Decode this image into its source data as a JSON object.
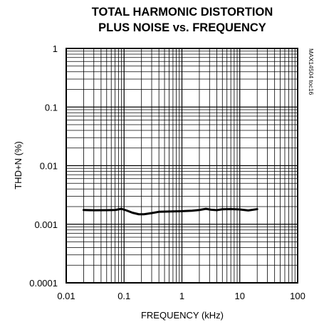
{
  "chart_data": {
    "type": "line",
    "title_lines": [
      "TOTAL HARMONIC DISTORTION",
      "PLUS NOISE vs. FREQUENCY"
    ],
    "xlabel": "FREQUENCY (kHz)",
    "ylabel": "THD+N (%)",
    "side_label": "MAX14504 toc16",
    "x_scale": "log",
    "y_scale": "log",
    "xlim": [
      0.01,
      100
    ],
    "ylim": [
      0.0001,
      1
    ],
    "grid": true,
    "x_ticks": [
      {
        "value": 0.01,
        "label": "0.01"
      },
      {
        "value": 0.1,
        "label": "0.1"
      },
      {
        "value": 1,
        "label": "1"
      },
      {
        "value": 10,
        "label": "10"
      },
      {
        "value": 100,
        "label": "100"
      }
    ],
    "y_ticks": [
      {
        "value": 1,
        "label": "1"
      },
      {
        "value": 0.1,
        "label": "0.1"
      },
      {
        "value": 0.01,
        "label": "0.01"
      },
      {
        "value": 0.001,
        "label": "0.001"
      },
      {
        "value": 0.0001,
        "label": "0.0001"
      }
    ],
    "series": [
      {
        "x": [
          0.02,
          0.03,
          0.05,
          0.07,
          0.09,
          0.11,
          0.14,
          0.18,
          0.22,
          0.3,
          0.4,
          0.6,
          0.8,
          1.0,
          1.5,
          2.0,
          2.6,
          3.2,
          4.0,
          5.0,
          7.0,
          10.0,
          14.0,
          20.0
        ],
        "y": [
          0.00175,
          0.00173,
          0.00174,
          0.00175,
          0.00183,
          0.00172,
          0.00157,
          0.00148,
          0.00148,
          0.00155,
          0.00163,
          0.00165,
          0.00166,
          0.00167,
          0.0017,
          0.00175,
          0.00183,
          0.00177,
          0.00174,
          0.0018,
          0.00181,
          0.00179,
          0.00172,
          0.00181
        ]
      }
    ]
  }
}
